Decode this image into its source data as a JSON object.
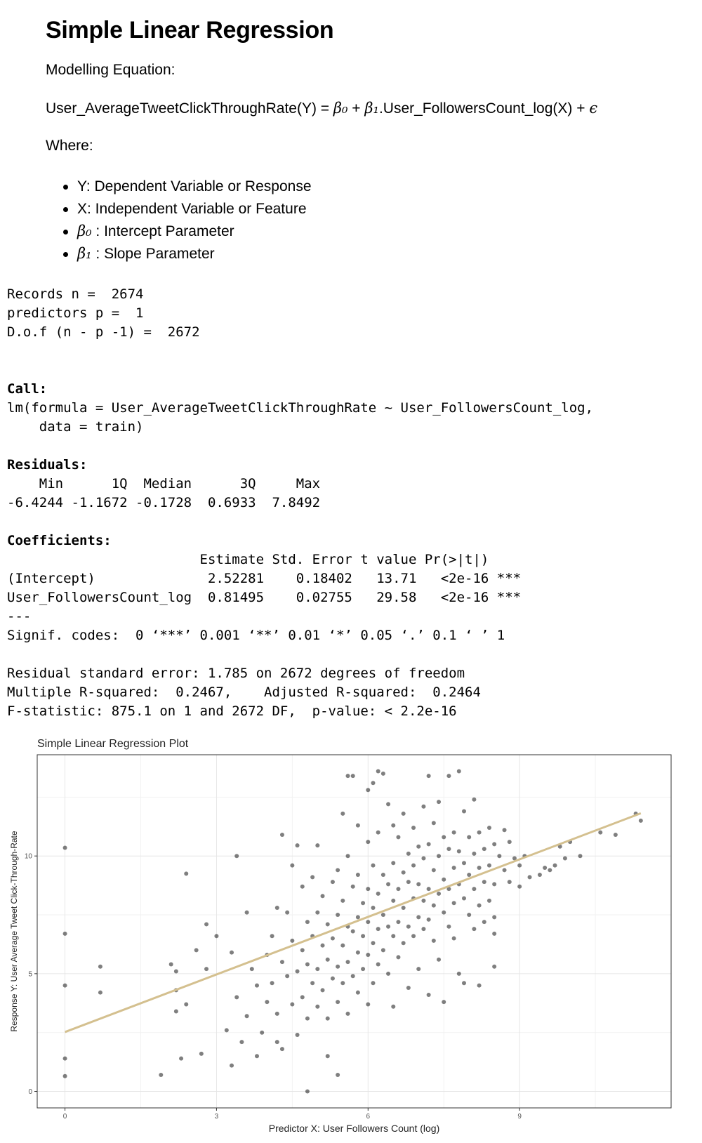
{
  "heading": "Simple Linear Regression",
  "modelling_label": "Modelling Equation:",
  "equation": {
    "lhs": "User_AverageTweetClickThroughRate(Y) = ",
    "beta0": "β₀",
    "plus": " + ",
    "beta1": "β₁",
    "rhs": ".User_FollowersCount_log(X) + ",
    "epsilon": "ϵ"
  },
  "where_label": "Where:",
  "bullets": [
    {
      "sym": "",
      "text": "Y: Dependent Variable or Response"
    },
    {
      "sym": "",
      "text": "X: Independent Variable or Feature"
    },
    {
      "sym": "β₀",
      "text": " : Intercept Parameter"
    },
    {
      "sym": "β₁",
      "text": " : Slope Parameter"
    }
  ],
  "records": {
    "n_line": "Records n =  2674",
    "p_line": "predictors p =  1",
    "dof_line": "D.o.f (n - p -1) =  2672"
  },
  "summary": {
    "call_label": "Call:",
    "call_1": "lm(formula = User_AverageTweetClickThroughRate ~ User_FollowersCount_log,",
    "call_2": "    data = train)",
    "residuals_label": "Residuals:",
    "residuals_header": "    Min      1Q  Median      3Q     Max",
    "residuals_values": "-6.4244 -1.1672 -0.1728  0.6933  7.8492",
    "coefficients_label": "Coefficients:",
    "coef_header": "                        Estimate Std. Error t value Pr(>|t|)",
    "coef_row1": "(Intercept)              2.52281    0.18402   13.71   <2e-16 ***",
    "coef_row2": "User_FollowersCount_log  0.81495    0.02755   29.58   <2e-16 ***",
    "separator": "---",
    "signif": "Signif. codes:  0 ‘***’ 0.001 ‘**’ 0.01 ‘*’ 0.05 ‘.’ 0.1 ‘ ’ 1",
    "rse": "Residual standard error: 1.785 on 2672 degrees of freedom",
    "rsq": "Multiple R-squared:  0.2467,\tAdjusted R-squared:  0.2464",
    "fstat": "F-statistic: 875.1 on 1 and 2672 DF,  p-value: < 2.2e-16"
  },
  "chart_data": {
    "type": "scatter",
    "title": "Simple Linear Regression Plot",
    "xlabel": "Predictor X: User Followers Count (log)",
    "ylabel": "Response Y: User Average Tweet Click-Through-Rate",
    "xlim": [
      -0.55,
      12.0
    ],
    "ylim": [
      -0.7,
      14.3
    ],
    "x_ticks": [
      0,
      3,
      6,
      9
    ],
    "y_ticks": [
      0,
      5,
      10
    ],
    "grid": true,
    "point_color": "#000000",
    "line_color": "#d4c08f",
    "regression_line": {
      "intercept": 2.52281,
      "slope": 0.81495,
      "x_range": [
        0,
        11.4
      ]
    },
    "points": [
      [
        0,
        10.35
      ],
      [
        0,
        6.7
      ],
      [
        0,
        4.5
      ],
      [
        0,
        1.4
      ],
      [
        0,
        0.65
      ],
      [
        0.7,
        5.3
      ],
      [
        0.7,
        4.2
      ],
      [
        1.9,
        0.7
      ],
      [
        2.1,
        5.4
      ],
      [
        2.2,
        5.1
      ],
      [
        2.2,
        4.3
      ],
      [
        2.2,
        3.4
      ],
      [
        2.3,
        1.4
      ],
      [
        2.4,
        9.25
      ],
      [
        2.4,
        3.7
      ],
      [
        2.6,
        6.0
      ],
      [
        2.7,
        1.6
      ],
      [
        2.8,
        7.1
      ],
      [
        2.8,
        5.2
      ],
      [
        3.0,
        6.6
      ],
      [
        3.2,
        2.6
      ],
      [
        3.3,
        5.9
      ],
      [
        3.3,
        1.1
      ],
      [
        3.4,
        10.0
      ],
      [
        3.4,
        4.0
      ],
      [
        3.5,
        2.1
      ],
      [
        3.6,
        7.6
      ],
      [
        3.6,
        3.2
      ],
      [
        3.7,
        5.2
      ],
      [
        3.8,
        4.5
      ],
      [
        3.8,
        1.5
      ],
      [
        3.9,
        2.5
      ],
      [
        4.0,
        5.8
      ],
      [
        4.0,
        3.8
      ],
      [
        4.1,
        6.6
      ],
      [
        4.1,
        4.6
      ],
      [
        4.2,
        7.8
      ],
      [
        4.2,
        3.3
      ],
      [
        4.2,
        2.1
      ],
      [
        4.3,
        10.9
      ],
      [
        4.3,
        5.5
      ],
      [
        4.3,
        1.8
      ],
      [
        4.4,
        7.6
      ],
      [
        4.4,
        4.9
      ],
      [
        4.5,
        9.6
      ],
      [
        4.5,
        6.4
      ],
      [
        4.5,
        3.7
      ],
      [
        4.6,
        10.45
      ],
      [
        4.6,
        5.1
      ],
      [
        4.6,
        2.4
      ],
      [
        4.7,
        8.7
      ],
      [
        4.7,
        6.0
      ],
      [
        4.7,
        4.0
      ],
      [
        4.8,
        7.2
      ],
      [
        4.8,
        5.4
      ],
      [
        4.8,
        3.1
      ],
      [
        4.8,
        0.0
      ],
      [
        4.9,
        9.1
      ],
      [
        4.9,
        6.6
      ],
      [
        4.9,
        4.6
      ],
      [
        5.0,
        10.45
      ],
      [
        5.0,
        7.6
      ],
      [
        5.0,
        5.2
      ],
      [
        5.0,
        3.6
      ],
      [
        5.1,
        8.3
      ],
      [
        5.1,
        6.2
      ],
      [
        5.1,
        4.3
      ],
      [
        5.2,
        7.1
      ],
      [
        5.2,
        5.6
      ],
      [
        5.2,
        3.1
      ],
      [
        5.2,
        1.5
      ],
      [
        5.3,
        8.9
      ],
      [
        5.3,
        6.5
      ],
      [
        5.3,
        4.8
      ],
      [
        5.4,
        9.4
      ],
      [
        5.4,
        7.5
      ],
      [
        5.4,
        5.3
      ],
      [
        5.4,
        3.8
      ],
      [
        5.4,
        0.7
      ],
      [
        5.5,
        11.8
      ],
      [
        5.5,
        8.1
      ],
      [
        5.5,
        6.2
      ],
      [
        5.5,
        4.6
      ],
      [
        5.6,
        13.4
      ],
      [
        5.6,
        10.0
      ],
      [
        5.6,
        7.0
      ],
      [
        5.6,
        5.5
      ],
      [
        5.6,
        3.3
      ],
      [
        5.7,
        13.4
      ],
      [
        5.7,
        8.7
      ],
      [
        5.7,
        6.8
      ],
      [
        5.7,
        4.9
      ],
      [
        5.8,
        11.3
      ],
      [
        5.8,
        9.2
      ],
      [
        5.8,
        7.4
      ],
      [
        5.8,
        5.9
      ],
      [
        5.8,
        4.2
      ],
      [
        5.9,
        8.0
      ],
      [
        5.9,
        6.6
      ],
      [
        5.9,
        5.2
      ],
      [
        6.0,
        12.8
      ],
      [
        6.0,
        10.6
      ],
      [
        6.0,
        8.6
      ],
      [
        6.0,
        7.2
      ],
      [
        6.0,
        5.8
      ],
      [
        6.0,
        3.7
      ],
      [
        6.1,
        13.1
      ],
      [
        6.1,
        9.6
      ],
      [
        6.1,
        7.8
      ],
      [
        6.1,
        6.3
      ],
      [
        6.1,
        4.6
      ],
      [
        6.2,
        13.6
      ],
      [
        6.2,
        11.0
      ],
      [
        6.2,
        8.4
      ],
      [
        6.2,
        6.9
      ],
      [
        6.2,
        5.4
      ],
      [
        6.3,
        13.5
      ],
      [
        6.3,
        9.2
      ],
      [
        6.3,
        7.5
      ],
      [
        6.3,
        6.0
      ],
      [
        6.4,
        12.2
      ],
      [
        6.4,
        8.8
      ],
      [
        6.4,
        7.0
      ],
      [
        6.4,
        5.0
      ],
      [
        6.5,
        11.3
      ],
      [
        6.5,
        9.7
      ],
      [
        6.5,
        8.1
      ],
      [
        6.5,
        6.6
      ],
      [
        6.5,
        3.6
      ],
      [
        6.6,
        10.8
      ],
      [
        6.6,
        8.6
      ],
      [
        6.6,
        7.2
      ],
      [
        6.6,
        5.7
      ],
      [
        6.7,
        11.8
      ],
      [
        6.7,
        9.3
      ],
      [
        6.7,
        7.8
      ],
      [
        6.7,
        6.3
      ],
      [
        6.8,
        10.1
      ],
      [
        6.8,
        8.9
      ],
      [
        6.8,
        7.0
      ],
      [
        6.8,
        4.4
      ],
      [
        6.9,
        11.2
      ],
      [
        6.9,
        9.6
      ],
      [
        6.9,
        8.2
      ],
      [
        6.9,
        6.6
      ],
      [
        7.0,
        10.4
      ],
      [
        7.0,
        8.8
      ],
      [
        7.0,
        7.4
      ],
      [
        7.0,
        5.2
      ],
      [
        7.1,
        12.1
      ],
      [
        7.1,
        9.9
      ],
      [
        7.1,
        8.1
      ],
      [
        7.1,
        6.9
      ],
      [
        7.2,
        13.4
      ],
      [
        7.2,
        10.5
      ],
      [
        7.2,
        8.6
      ],
      [
        7.2,
        7.3
      ],
      [
        7.2,
        4.1
      ],
      [
        7.3,
        11.4
      ],
      [
        7.3,
        9.4
      ],
      [
        7.3,
        7.9
      ],
      [
        7.3,
        6.4
      ],
      [
        7.4,
        12.3
      ],
      [
        7.4,
        10.0
      ],
      [
        7.4,
        8.4
      ],
      [
        7.4,
        5.6
      ],
      [
        7.5,
        10.8
      ],
      [
        7.5,
        9.0
      ],
      [
        7.5,
        7.6
      ],
      [
        7.5,
        3.8
      ],
      [
        7.6,
        13.4
      ],
      [
        7.6,
        10.3
      ],
      [
        7.6,
        8.6
      ],
      [
        7.6,
        7.0
      ],
      [
        7.7,
        11.0
      ],
      [
        7.7,
        9.5
      ],
      [
        7.7,
        8.0
      ],
      [
        7.7,
        6.5
      ],
      [
        7.8,
        13.6
      ],
      [
        7.8,
        10.2
      ],
      [
        7.8,
        8.8
      ],
      [
        7.8,
        5.0
      ],
      [
        7.9,
        11.9
      ],
      [
        7.9,
        9.7
      ],
      [
        7.9,
        8.2
      ],
      [
        7.9,
        4.6
      ],
      [
        8.0,
        10.8
      ],
      [
        8.0,
        9.2
      ],
      [
        8.0,
        7.5
      ],
      [
        8.1,
        12.4
      ],
      [
        8.1,
        10.1
      ],
      [
        8.1,
        8.6
      ],
      [
        8.1,
        6.9
      ],
      [
        8.2,
        11.0
      ],
      [
        8.2,
        9.5
      ],
      [
        8.2,
        7.9
      ],
      [
        8.2,
        4.5
      ],
      [
        8.3,
        10.3
      ],
      [
        8.3,
        8.9
      ],
      [
        8.3,
        7.2
      ],
      [
        8.4,
        11.2
      ],
      [
        8.4,
        9.6
      ],
      [
        8.4,
        8.1
      ],
      [
        8.5,
        10.5
      ],
      [
        8.5,
        8.8
      ],
      [
        8.5,
        7.4
      ],
      [
        8.5,
        6.7
      ],
      [
        8.5,
        5.3
      ],
      [
        8.6,
        10.0
      ],
      [
        8.7,
        11.1
      ],
      [
        8.7,
        9.4
      ],
      [
        8.8,
        10.6
      ],
      [
        8.8,
        8.9
      ],
      [
        8.9,
        9.9
      ],
      [
        9.0,
        9.6
      ],
      [
        9.0,
        8.7
      ],
      [
        9.1,
        10.0
      ],
      [
        9.2,
        9.1
      ],
      [
        9.4,
        9.2
      ],
      [
        9.5,
        9.5
      ],
      [
        9.6,
        9.4
      ],
      [
        9.7,
        9.6
      ],
      [
        9.8,
        10.4
      ],
      [
        9.9,
        9.9
      ],
      [
        10.0,
        10.6
      ],
      [
        10.2,
        10.0
      ],
      [
        10.6,
        11.0
      ],
      [
        10.9,
        10.9
      ],
      [
        11.3,
        11.8
      ],
      [
        11.4,
        11.5
      ]
    ]
  }
}
